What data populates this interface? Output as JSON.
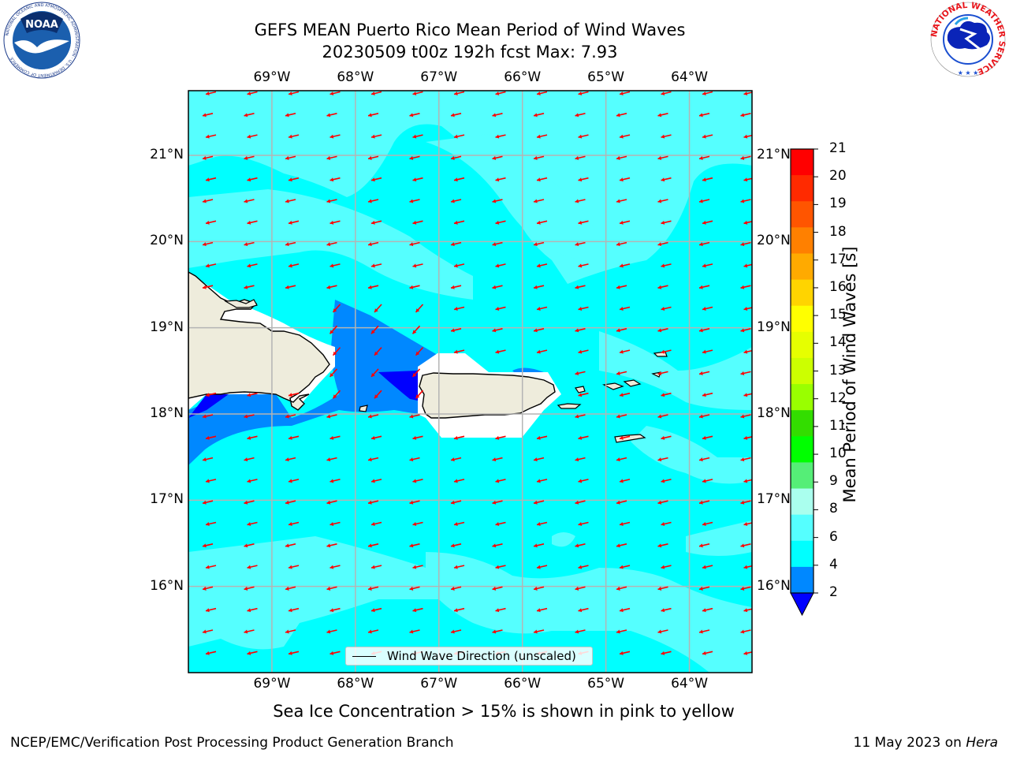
{
  "title": {
    "line1": "GEFS MEAN Puerto Rico Mean Period of Wind Waves",
    "line2": "20230509 t00z 192h fcst   Max: 7.93"
  },
  "map": {
    "lon_labels": [
      "69°W",
      "68°W",
      "67°W",
      "66°W",
      "65°W",
      "64°W"
    ],
    "lat_labels": [
      "21°N",
      "20°N",
      "19°N",
      "18°N",
      "17°N",
      "16°N"
    ],
    "lon_range": [
      -70.0,
      -63.25
    ],
    "lat_range": [
      15.0,
      21.75
    ],
    "gridlines": true,
    "arrow_color": "#ff0000",
    "land_color": "#eeecdc",
    "legend": {
      "label": "Wind Wave Direction (unscaled)"
    }
  },
  "colorbar": {
    "label": "Mean Period of Wind Waves [s]",
    "ticks": [
      "21",
      "20",
      "19",
      "18",
      "17",
      "16",
      "15",
      "14",
      "13",
      "12",
      "11",
      "10",
      "9",
      "8",
      "6",
      "4",
      "2"
    ],
    "colors": [
      "#ff0000",
      "#ff2a00",
      "#ff5500",
      "#ff8000",
      "#ffaa00",
      "#ffd400",
      "#ffff00",
      "#e6ff00",
      "#ccff00",
      "#99ff00",
      "#33dd00",
      "#00ff00",
      "#55ee77",
      "#aaffee",
      "#55ffff",
      "#00ffff",
      "#0088ff",
      "#0000ff"
    ]
  },
  "caption": "Sea Ice Concentration > 15% is shown in pink to yellow",
  "footer": {
    "left": "NCEP/EMC/Verification Post Processing Product Generation Branch",
    "date": "11 May 2023 on",
    "host": "Hera"
  },
  "logos": {
    "noaa": {
      "text": "NOAA",
      "ring_text": "NATIONAL OCEANIC AND ATMOSPHERIC ADMINISTRATION · U.S. DEPARTMENT OF COMMERCE"
    },
    "nws": {
      "ring_text": "NATIONAL WEATHER SERVICE"
    }
  }
}
